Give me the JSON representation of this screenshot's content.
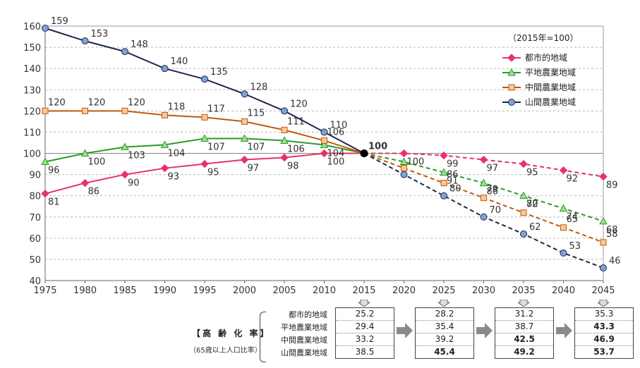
{
  "chart_data": {
    "type": "line",
    "title": "",
    "base_note": "（2015年=100）",
    "x": [
      1975,
      1980,
      1985,
      1990,
      1995,
      2000,
      2005,
      2010,
      2015,
      2020,
      2025,
      2030,
      2035,
      2040,
      2045
    ],
    "ylim": [
      40,
      160
    ],
    "yticks": [
      40,
      50,
      60,
      70,
      80,
      90,
      100,
      110,
      120,
      130,
      140,
      150,
      160
    ],
    "projection_start_index": 8,
    "base_label": "100",
    "series": [
      {
        "name": "都市的地域",
        "color": "#e8336a",
        "marker": "diamond",
        "values": [
          81,
          86,
          90,
          93,
          95,
          97,
          98,
          100,
          100,
          100,
          99,
          97,
          95,
          92,
          89
        ],
        "labels": [
          "81",
          "86",
          "90",
          "93",
          "95",
          "97",
          "98",
          "100",
          "",
          "100",
          "99",
          "97",
          "95",
          "92",
          "89"
        ]
      },
      {
        "name": "平地農業地域",
        "color": "#2a9a2a",
        "marker": "triangle",
        "values": [
          96,
          100,
          103,
          104,
          107,
          107,
          106,
          104,
          100,
          96,
          91,
          86,
          80,
          74,
          68
        ],
        "labels": [
          "96",
          "100",
          "103",
          "104",
          "107",
          "107",
          "106",
          "104",
          "",
          "",
          "91",
          "86",
          "80",
          "74",
          "68"
        ]
      },
      {
        "name": "中間農業地域",
        "color": "#c05a10",
        "marker": "square",
        "values": [
          120,
          120,
          120,
          118,
          117,
          115,
          111,
          106,
          100,
          93,
          86,
          79,
          72,
          65,
          58
        ],
        "labels": [
          "120",
          "120",
          "120",
          "118",
          "117",
          "115",
          "111",
          "106",
          "",
          "",
          "86",
          "79",
          "72",
          "65",
          "58"
        ]
      },
      {
        "name": "山間農業地域",
        "color": "#1a2a4a",
        "marker": "circle",
        "values": [
          159,
          153,
          148,
          140,
          135,
          128,
          120,
          110,
          100,
          90,
          80,
          70,
          62,
          53,
          46
        ],
        "labels": [
          "159",
          "153",
          "148",
          "140",
          "135",
          "128",
          "120",
          "110",
          "",
          "",
          "80",
          "70",
          "62",
          "53",
          "46"
        ]
      }
    ]
  },
  "aging": {
    "title": "【高 齢 化 率】",
    "subtitle": "（65歳以上人口比率）",
    "row_labels": [
      "都市的地域",
      "平地農業地域",
      "中間農業地域",
      "山間農業地域"
    ],
    "columns": [
      {
        "year": "2015",
        "values": [
          "25.2",
          "29.4",
          "33.2",
          "38.5"
        ],
        "bold": [
          false,
          false,
          false,
          false
        ]
      },
      {
        "year": "2025",
        "values": [
          "28.2",
          "35.4",
          "39.2",
          "45.4"
        ],
        "bold": [
          false,
          false,
          false,
          true
        ]
      },
      {
        "year": "2035",
        "values": [
          "31.2",
          "38.7",
          "42.5",
          "49.2"
        ],
        "bold": [
          false,
          false,
          true,
          true
        ]
      },
      {
        "year": "2045",
        "values": [
          "35.3",
          "43.3",
          "46.9",
          "53.7"
        ],
        "bold": [
          false,
          true,
          true,
          true
        ]
      }
    ]
  }
}
